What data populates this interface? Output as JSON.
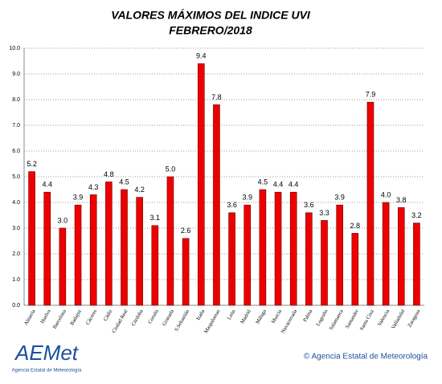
{
  "chart_data": {
    "type": "bar",
    "title": "VALORES MÁXIMOS DEL INDICE UVI",
    "subtitle": "FEBRERO/2018",
    "categories": [
      "Almería",
      "Huelva",
      "Barcelona",
      "Badajoz",
      "Cáceres",
      "Cádiz",
      "Ciudad Real",
      "Córdoba",
      "Coruña",
      "Granada",
      "S.Sebastián",
      "Izaña",
      "Maspalomas",
      "León",
      "Madrid",
      "Málaga",
      "Murcia",
      "Navacerrada",
      "Palma",
      "Logroño",
      "Salamanca",
      "Santander",
      "Santa Cruz",
      "Valencia",
      "Valladolid",
      "Zaragoza"
    ],
    "values": [
      5.2,
      4.4,
      3.0,
      3.9,
      4.3,
      4.8,
      4.5,
      4.2,
      3.1,
      5.0,
      2.6,
      9.4,
      7.8,
      3.6,
      3.9,
      4.5,
      4.4,
      4.4,
      3.6,
      3.3,
      3.9,
      2.8,
      7.9,
      4.0,
      3.8,
      3.2
    ],
    "value_labels": [
      "5.2",
      "4.4",
      "3.0",
      "3.9",
      "4.3",
      "4.8",
      "4.5",
      "4.2",
      "3.1",
      "5.0",
      "2.6",
      "9.4",
      "7.8",
      "3.6",
      "3.9",
      "4.5",
      "4.4",
      "4.4",
      "3.6",
      "3.3",
      "3.9",
      "2.8",
      "7.9",
      "4.0",
      "3.8",
      "3.2"
    ],
    "color": "#ee0000",
    "ylim": [
      0,
      10
    ],
    "yticks": [
      {
        "value": 0,
        "label": "0.0"
      },
      {
        "value": 1,
        "label": "1.0"
      },
      {
        "value": 2,
        "label": "2.0"
      },
      {
        "value": 3,
        "label": "3.0"
      },
      {
        "value": 4,
        "label": "4.0"
      },
      {
        "value": 5,
        "label": "5.0"
      },
      {
        "value": 6,
        "label": "6.0"
      },
      {
        "value": 7,
        "label": "7.0"
      },
      {
        "value": 8,
        "label": "8.0"
      },
      {
        "value": 9,
        "label": "9.0"
      },
      {
        "value": 10,
        "label": "10.0"
      }
    ],
    "grid": true
  },
  "footer": {
    "logo": "AEMet",
    "logo_caption": "Agencia Estatal de Meteorología",
    "copyright": "© Agencia Estatal de Meteorología"
  }
}
